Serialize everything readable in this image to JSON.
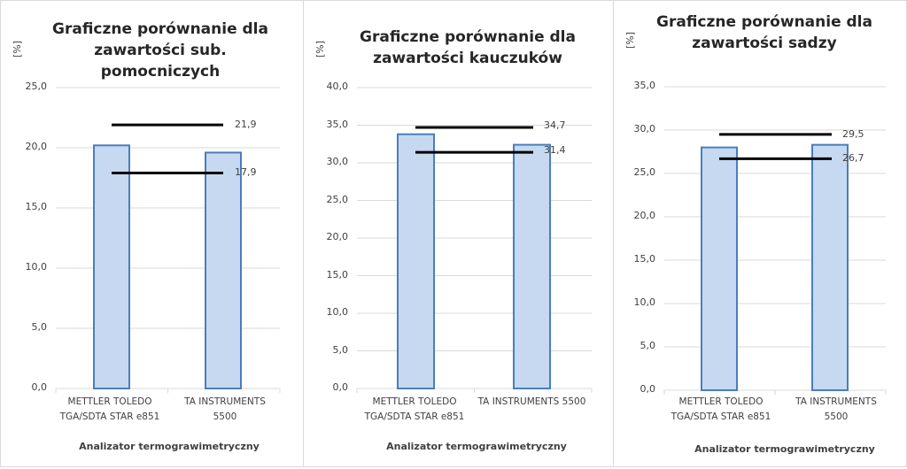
{
  "colors": {
    "bar_fill": "#c6d9f1",
    "bar_stroke": "#4a7ebb",
    "limit_line": "#000000",
    "grid": "#d9d9d9"
  },
  "chart_data": [
    {
      "type": "bar",
      "title": "Graficzne porównanie dla zawartości sub. pomocniczych",
      "title_lines": [
        "Graficzne porównanie dla",
        "zawartości sub.",
        "pomocniczych"
      ],
      "ylabel": "[%]",
      "xlabel": "Analizator termograwimetryczny",
      "categories": [
        "METTLER  TOLEDO\nTGA/SDTA  STAR  e851",
        "TA INSTRUMENTS\n5500"
      ],
      "values": [
        20.2,
        19.6
      ],
      "limits": [
        {
          "name": "upper",
          "value": 21.9,
          "label": "21,9"
        },
        {
          "name": "lower",
          "value": 17.9,
          "label": "17,9"
        }
      ],
      "ylim": [
        0,
        25
      ],
      "yticks": [
        "0,0",
        "5,0",
        "10,0",
        "15,0",
        "20,0",
        "25,0"
      ],
      "grid": true
    },
    {
      "type": "bar",
      "title": "Graficzne porównanie dla zawartości kauczuków",
      "title_lines": [
        "Graficzne porównanie dla",
        "zawartości kauczuków"
      ],
      "ylabel": "[%]",
      "xlabel": "Analizator termograwimetryczny",
      "categories": [
        "METTLER  TOLEDO\nTGA/SDTA  STAR  e851",
        "TA INSTRUMENTS 5500"
      ],
      "values": [
        33.8,
        32.4
      ],
      "limits": [
        {
          "name": "upper",
          "value": 34.7,
          "label": "34,7"
        },
        {
          "name": "lower",
          "value": 31.4,
          "label": "31,4"
        }
      ],
      "ylim": [
        0,
        40
      ],
      "yticks": [
        "0,0",
        "5,0",
        "10,0",
        "15,0",
        "20,0",
        "25,0",
        "30,0",
        "35,0",
        "40,0"
      ],
      "grid": true
    },
    {
      "type": "bar",
      "title": "Graficzne porównanie dla zawartości sadzy",
      "title_lines": [
        "Graficzne porównanie dla",
        "zawartości sadzy"
      ],
      "ylabel": "[%]",
      "xlabel": "Analizator termograwimetryczny",
      "categories": [
        "METTLER  TOLEDO\nTGA/SDTA  STAR  e851",
        "TA INSTRUMENTS\n5500"
      ],
      "values": [
        28.0,
        28.3
      ],
      "limits": [
        {
          "name": "upper",
          "value": 29.5,
          "label": "29,5"
        },
        {
          "name": "lower",
          "value": 26.7,
          "label": "26,7"
        }
      ],
      "ylim": [
        0,
        35
      ],
      "yticks": [
        "0,0",
        "5,0",
        "10,0",
        "15,0",
        "20,0",
        "25,0",
        "30,0",
        "35,0"
      ],
      "grid": true
    }
  ]
}
